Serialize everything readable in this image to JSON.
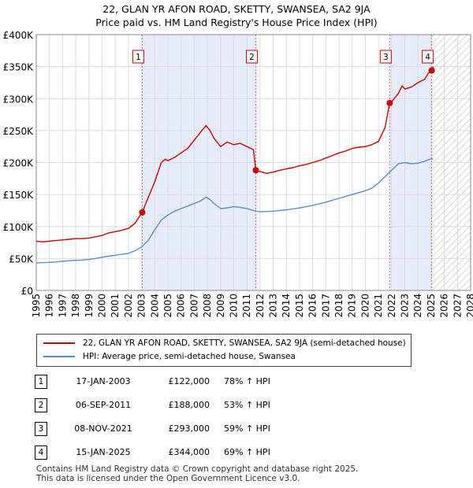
{
  "title": "22, GLAN YR AFON ROAD, SKETTY, SWANSEA, SA2 9JA",
  "subtitle": "Price paid vs. HM Land Registry's House Price Index (HPI)",
  "colors": {
    "property": "#cc0000",
    "hpi": "#5b8ec4",
    "shade": "#e6ecfa",
    "marker_line": "#d46a6a"
  },
  "chart_data": {
    "type": "line",
    "xlim": [
      1995,
      2028
    ],
    "ylim": [
      0,
      400000
    ],
    "x_ticks": [
      "1995",
      "1996",
      "1997",
      "1998",
      "1999",
      "2000",
      "2001",
      "2002",
      "2003",
      "2004",
      "2005",
      "2006",
      "2007",
      "2008",
      "2009",
      "2010",
      "2011",
      "2012",
      "2013",
      "2014",
      "2015",
      "2016",
      "2017",
      "2018",
      "2019",
      "2020",
      "2021",
      "2022",
      "2023",
      "2024",
      "2025",
      "2026",
      "2027",
      "2028"
    ],
    "y_ticks": [
      {
        "value": 0,
        "label": "£0"
      },
      {
        "value": 50000,
        "label": "£50K"
      },
      {
        "value": 100000,
        "label": "£100K"
      },
      {
        "value": 150000,
        "label": "£150K"
      },
      {
        "value": 200000,
        "label": "£200K"
      },
      {
        "value": 250000,
        "label": "£250K"
      },
      {
        "value": 300000,
        "label": "£300K"
      },
      {
        "value": 350000,
        "label": "£350K"
      },
      {
        "value": 400000,
        "label": "£400K"
      }
    ],
    "series": [
      {
        "name": "22, GLAN YR AFON ROAD, SKETTY, SWANSEA, SA2 9JA (semi-detached house)",
        "x": [
          1995.0,
          1995.5,
          1996.0,
          1996.5,
          1997.0,
          1997.5,
          1998.0,
          1998.5,
          1999.0,
          1999.5,
          2000.0,
          2000.5,
          2001.0,
          2001.5,
          2002.0,
          2002.5,
          2003.05,
          2003.5,
          2004.0,
          2004.5,
          2004.8,
          2005.0,
          2005.5,
          2006.0,
          2006.5,
          2007.0,
          2007.5,
          2007.9,
          2008.2,
          2008.5,
          2009.0,
          2009.5,
          2010.0,
          2010.5,
          2011.0,
          2011.5,
          2011.68,
          2012.0,
          2012.5,
          2013.0,
          2013.5,
          2014.0,
          2014.5,
          2015.0,
          2015.5,
          2016.0,
          2016.5,
          2017.0,
          2017.5,
          2018.0,
          2018.5,
          2019.0,
          2019.5,
          2020.0,
          2020.5,
          2021.0,
          2021.5,
          2021.85,
          2022.0,
          2022.5,
          2022.8,
          2023.0,
          2023.5,
          2024.0,
          2024.5,
          2024.8,
          2025.04,
          2025.15
        ],
        "values": [
          77000,
          76000,
          77000,
          78000,
          79000,
          80000,
          81000,
          81000,
          82000,
          84000,
          86000,
          90000,
          92000,
          94000,
          97000,
          105000,
          122000,
          145000,
          170000,
          200000,
          205000,
          203000,
          208000,
          215000,
          222000,
          235000,
          248000,
          258000,
          250000,
          238000,
          225000,
          232000,
          228000,
          230000,
          225000,
          220000,
          188000,
          186000,
          183000,
          185000,
          188000,
          190000,
          192000,
          195000,
          197000,
          200000,
          203000,
          207000,
          211000,
          215000,
          218000,
          222000,
          224000,
          225000,
          228000,
          233000,
          255000,
          293000,
          295000,
          308000,
          320000,
          315000,
          318000,
          325000,
          330000,
          340000,
          344000,
          350000
        ]
      },
      {
        "name": "HPI: Average price, semi-detached house, Swansea",
        "x": [
          1995.0,
          1995.5,
          1996.0,
          1996.5,
          1997.0,
          1997.5,
          1998.0,
          1998.5,
          1999.0,
          1999.5,
          2000.0,
          2000.5,
          2001.0,
          2001.5,
          2002.0,
          2002.5,
          2003.0,
          2003.5,
          2004.0,
          2004.5,
          2005.0,
          2005.5,
          2006.0,
          2006.5,
          2007.0,
          2007.5,
          2007.9,
          2008.2,
          2008.5,
          2009.0,
          2009.5,
          2010.0,
          2010.5,
          2011.0,
          2011.5,
          2012.0,
          2012.5,
          2013.0,
          2013.5,
          2014.0,
          2014.5,
          2015.0,
          2015.5,
          2016.0,
          2016.5,
          2017.0,
          2017.5,
          2018.0,
          2018.5,
          2019.0,
          2019.5,
          2020.0,
          2020.5,
          2021.0,
          2021.5,
          2022.0,
          2022.5,
          2023.0,
          2023.5,
          2024.0,
          2024.5,
          2025.0,
          2025.15
        ],
        "values": [
          43000,
          43500,
          44000,
          44500,
          45500,
          46500,
          47000,
          47500,
          48500,
          50000,
          52000,
          53500,
          55000,
          56500,
          58000,
          62000,
          68000,
          78000,
          95000,
          110000,
          118000,
          124000,
          128000,
          132000,
          136000,
          140000,
          146000,
          142000,
          136000,
          128000,
          129000,
          131000,
          130000,
          128000,
          125000,
          123000,
          123500,
          124000,
          125000,
          126000,
          127500,
          129000,
          131000,
          133000,
          135500,
          138000,
          141000,
          144000,
          147000,
          150000,
          153000,
          156000,
          160000,
          168000,
          178000,
          188000,
          198000,
          200000,
          198000,
          199000,
          202000,
          206000,
          205000
        ]
      }
    ],
    "sales": [
      {
        "label": "1",
        "x": 2003.05,
        "value": 122000,
        "date": "17-JAN-2003",
        "price": "£122,000",
        "hpi": "78% ↑ HPI"
      },
      {
        "label": "2",
        "x": 2011.68,
        "value": 188000,
        "date": "06-SEP-2011",
        "price": "£188,000",
        "hpi": "53% ↑ HPI"
      },
      {
        "label": "3",
        "x": 2021.85,
        "value": 293000,
        "date": "08-NOV-2021",
        "price": "£293,000",
        "hpi": "59% ↑ HPI"
      },
      {
        "label": "4",
        "x": 2025.04,
        "value": 344000,
        "date": "15-JAN-2025",
        "price": "£344,000",
        "hpi": "69% ↑ HPI"
      }
    ],
    "shaded_ranges": [
      [
        2003.05,
        2011.68
      ],
      [
        2021.85,
        2025.04
      ]
    ],
    "future_hatch_from": 2025.04,
    "grid": true
  },
  "legend": {
    "property": "22, GLAN YR AFON ROAD, SKETTY, SWANSEA, SA2 9JA (semi-detached house)",
    "hpi": "HPI: Average price, semi-detached house, Swansea"
  },
  "footer": {
    "line1": "Contains HM Land Registry data © Crown copyright and database right 2025.",
    "line2": "This data is licensed under the Open Government Licence v3.0."
  }
}
